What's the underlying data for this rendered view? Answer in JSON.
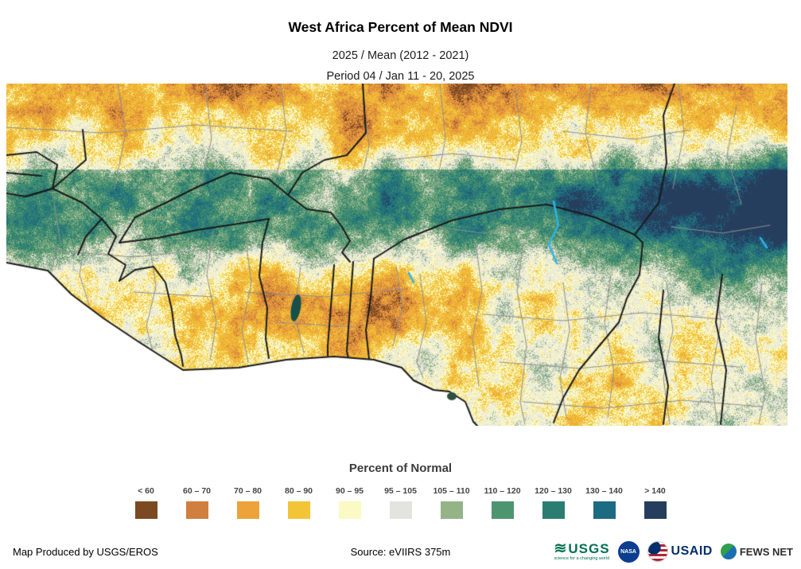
{
  "header": {
    "title": "West Africa Percent of Mean NDVI",
    "subtitle_line1": "2025 / Mean (2012 - 2021)",
    "subtitle_line2": "Period 04 / Jan 11 - 20, 2025"
  },
  "legend": {
    "title": "Percent of Normal",
    "classes": [
      {
        "label": "< 60",
        "color": "#7c4a21"
      },
      {
        "label": "60 – 70",
        "color": "#d07f3e"
      },
      {
        "label": "70 – 80",
        "color": "#eca33a"
      },
      {
        "label": "80 – 90",
        "color": "#f2c437"
      },
      {
        "label": "90 – 95",
        "color": "#fbf9c4"
      },
      {
        "label": "95 – 105",
        "color": "#e3e3df"
      },
      {
        "label": "105 – 110",
        "color": "#94b488"
      },
      {
        "label": "110 – 120",
        "color": "#4d9571"
      },
      {
        "label": "120 – 130",
        "color": "#2b7d71"
      },
      {
        "label": "130 – 140",
        "color": "#1d6a83"
      },
      {
        "label": "> 140",
        "color": "#263e5d"
      }
    ]
  },
  "map": {
    "ocean_color": "#ffffff",
    "country_border_color": "#1a1a1a",
    "admin_border_color": "#8f8f8f",
    "water_color": "#2fb5e8",
    "lake_color": "#17504a",
    "island_color": "#2f4f3f"
  },
  "footer": {
    "produced_by": "Map Produced by USGS/EROS",
    "source": "Source: eVIIRS 375m",
    "logos": {
      "usgs": {
        "text": "USGS",
        "tagline": "science for a changing world",
        "color": "#007150"
      },
      "nasa": {
        "text": "NASA",
        "color": "#0b3d91"
      },
      "usaid": {
        "text": "USAID",
        "color": "#002f6c"
      },
      "fewsnet": {
        "text": "FEWS NET",
        "color": "#2e2e2e"
      }
    }
  }
}
